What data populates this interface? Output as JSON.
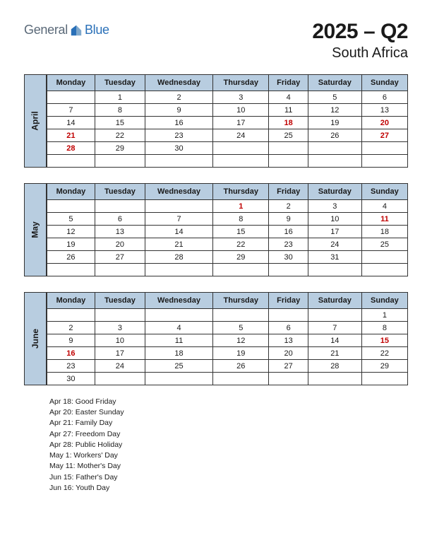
{
  "logo": {
    "general": "General",
    "blue": "Blue"
  },
  "title": "2025 – Q2",
  "subtitle": "South Africa",
  "days": [
    "Monday",
    "Tuesday",
    "Wednesday",
    "Thursday",
    "Friday",
    "Saturday",
    "Sunday"
  ],
  "colors": {
    "header_bg": "#b8cde0",
    "border": "#333333",
    "holiday_text": "#c00000",
    "logo_gray": "#5a6978",
    "logo_blue": "#2a70b8"
  },
  "months": [
    {
      "name": "April",
      "weeks": [
        [
          "",
          "1",
          "2",
          "3",
          "4",
          "5",
          "6"
        ],
        [
          "7",
          "8",
          "9",
          "10",
          "11",
          "12",
          "13"
        ],
        [
          "14",
          "15",
          "16",
          "17",
          "18",
          "19",
          "20"
        ],
        [
          "21",
          "22",
          "23",
          "24",
          "25",
          "26",
          "27"
        ],
        [
          "28",
          "29",
          "30",
          "",
          "",
          "",
          ""
        ],
        [
          "",
          "",
          "",
          "",
          "",
          "",
          ""
        ]
      ],
      "holidays": [
        [
          2,
          4
        ],
        [
          2,
          6
        ],
        [
          3,
          0
        ],
        [
          3,
          6
        ],
        [
          4,
          0
        ]
      ]
    },
    {
      "name": "May",
      "weeks": [
        [
          "",
          "",
          "",
          "1",
          "2",
          "3",
          "4"
        ],
        [
          "5",
          "6",
          "7",
          "8",
          "9",
          "10",
          "11"
        ],
        [
          "12",
          "13",
          "14",
          "15",
          "16",
          "17",
          "18"
        ],
        [
          "19",
          "20",
          "21",
          "22",
          "23",
          "24",
          "25"
        ],
        [
          "26",
          "27",
          "28",
          "29",
          "30",
          "31",
          ""
        ],
        [
          "",
          "",
          "",
          "",
          "",
          "",
          ""
        ]
      ],
      "holidays": [
        [
          0,
          3
        ],
        [
          1,
          6
        ]
      ]
    },
    {
      "name": "June",
      "weeks": [
        [
          "",
          "",
          "",
          "",
          "",
          "",
          "1"
        ],
        [
          "2",
          "3",
          "4",
          "5",
          "6",
          "7",
          "8"
        ],
        [
          "9",
          "10",
          "11",
          "12",
          "13",
          "14",
          "15"
        ],
        [
          "16",
          "17",
          "18",
          "19",
          "20",
          "21",
          "22"
        ],
        [
          "23",
          "24",
          "25",
          "26",
          "27",
          "28",
          "29"
        ],
        [
          "30",
          "",
          "",
          "",
          "",
          "",
          ""
        ]
      ],
      "holidays": [
        [
          2,
          6
        ],
        [
          3,
          0
        ]
      ]
    }
  ],
  "holiday_list": [
    "Apr 18: Good Friday",
    "Apr 20: Easter Sunday",
    "Apr 21: Family Day",
    "Apr 27: Freedom Day",
    "Apr 28: Public Holiday",
    "May 1: Workers' Day",
    "May 11: Mother's Day",
    "Jun 15: Father's Day",
    "Jun 16: Youth Day"
  ]
}
